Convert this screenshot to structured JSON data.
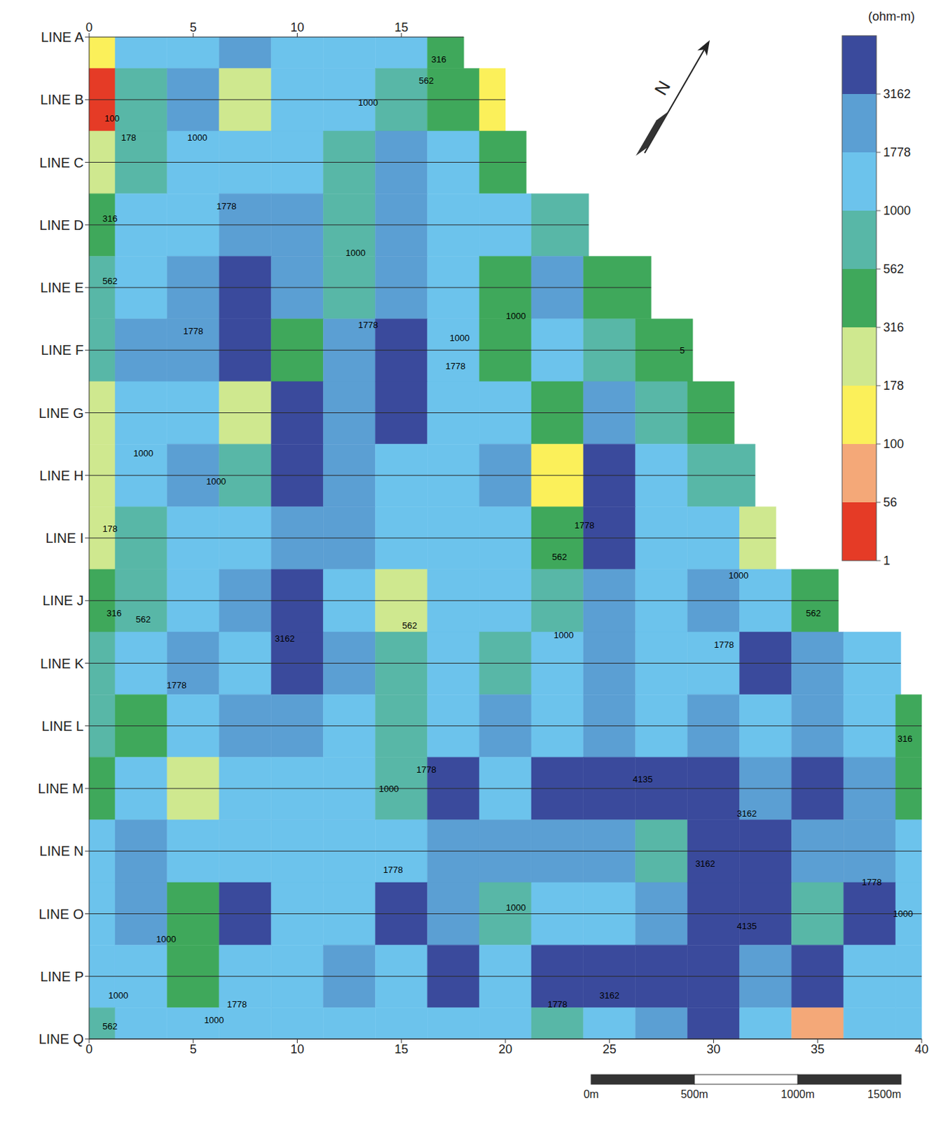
{
  "chart_data": {
    "type": "heatmap",
    "x": [
      0,
      2.5,
      5,
      7.5,
      10,
      12.5,
      15,
      17.5,
      20,
      22.5,
      25,
      27.5,
      30,
      32.5,
      35,
      37.5,
      40
    ],
    "categories": [
      "LINE A",
      "LINE B",
      "LINE C",
      "LINE D",
      "LINE E",
      "LINE F",
      "LINE G",
      "LINE H",
      "LINE I",
      "LINE J",
      "LINE K",
      "LINE L",
      "LINE M",
      "LINE N",
      "LINE O",
      "LINE P",
      "LINE Q"
    ],
    "line_end": [
      18,
      20,
      21,
      24,
      27,
      29,
      31,
      32,
      33,
      36,
      39,
      40,
      40,
      40,
      40,
      40,
      40
    ],
    "values": [
      [
        150,
        1400,
        1400,
        2400,
        1400,
        1400,
        1400,
        450,
        null,
        null,
        null,
        null,
        null,
        null,
        null,
        null,
        null
      ],
      [
        40,
        800,
        2400,
        250,
        1400,
        1400,
        800,
        450,
        140,
        null,
        null,
        null,
        null,
        null,
        null,
        null,
        null
      ],
      [
        250,
        800,
        1400,
        1400,
        1400,
        800,
        2400,
        1400,
        450,
        null,
        null,
        null,
        null,
        null,
        null,
        null,
        null
      ],
      [
        450,
        1400,
        1400,
        2400,
        2400,
        800,
        2400,
        1400,
        1400,
        800,
        null,
        null,
        null,
        null,
        null,
        null,
        null
      ],
      [
        800,
        1400,
        2400,
        3800,
        2400,
        800,
        2400,
        1400,
        450,
        2400,
        450,
        null,
        null,
        null,
        null,
        null,
        null
      ],
      [
        800,
        2400,
        2400,
        3800,
        450,
        2400,
        3800,
        1400,
        450,
        1400,
        800,
        450,
        null,
        null,
        null,
        null,
        null
      ],
      [
        250,
        1400,
        1400,
        250,
        3800,
        2400,
        3800,
        1400,
        1400,
        450,
        2400,
        800,
        450,
        null,
        null,
        null,
        null
      ],
      [
        250,
        1400,
        2400,
        800,
        3800,
        2400,
        1400,
        1400,
        2400,
        140,
        3800,
        1400,
        800,
        null,
        null,
        null,
        null
      ],
      [
        250,
        800,
        1400,
        1400,
        2400,
        2400,
        1400,
        1400,
        1400,
        450,
        3800,
        1400,
        1400,
        250,
        null,
        null,
        null
      ],
      [
        450,
        800,
        1400,
        2400,
        3800,
        1400,
        250,
        1400,
        1400,
        800,
        2400,
        1400,
        2400,
        1400,
        450,
        null,
        null
      ],
      [
        800,
        1400,
        2400,
        1400,
        3800,
        2400,
        800,
        1400,
        800,
        1400,
        2400,
        1400,
        1400,
        3800,
        2400,
        1400,
        null
      ],
      [
        800,
        450,
        1400,
        2400,
        2400,
        1400,
        800,
        1400,
        2400,
        1400,
        2400,
        1400,
        2400,
        1400,
        2400,
        1400,
        450
      ],
      [
        450,
        1400,
        250,
        1400,
        1400,
        1400,
        800,
        3800,
        1400,
        3800,
        3800,
        3800,
        3800,
        2400,
        3800,
        2400,
        450
      ],
      [
        1400,
        2400,
        1400,
        1400,
        1400,
        1400,
        1400,
        2400,
        2400,
        2400,
        2400,
        800,
        3800,
        3800,
        2400,
        2400,
        1400
      ],
      [
        1400,
        2400,
        450,
        3800,
        1400,
        1400,
        3800,
        2400,
        800,
        1400,
        1400,
        2400,
        3800,
        3800,
        800,
        3800,
        1400
      ],
      [
        1400,
        1400,
        450,
        1400,
        1400,
        2400,
        1400,
        3800,
        1400,
        3800,
        3800,
        3800,
        3800,
        2400,
        3800,
        1400,
        1400
      ],
      [
        800,
        1400,
        1400,
        1400,
        1400,
        1400,
        1400,
        1400,
        1400,
        800,
        1400,
        2400,
        3800,
        1400,
        80,
        1400,
        1400
      ]
    ],
    "xlim": [
      0,
      40
    ],
    "xticks": [
      0,
      5,
      10,
      15,
      20,
      25,
      30,
      35,
      40
    ],
    "top_xticks": [
      0,
      5,
      10,
      15
    ],
    "colorbar": {
      "title": "(ohm-m)",
      "range": [
        1,
        5623
      ],
      "ticks": [
        1,
        56,
        100,
        178,
        316,
        562,
        1000,
        1778,
        3162
      ],
      "colors": [
        "#e53b26",
        "#f4a878",
        "#fbf05a",
        "#cfe88f",
        "#3fa85b",
        "#58b7a7",
        "#6cc3ec",
        "#5b9fd3",
        "#3a4a9c"
      ]
    },
    "contour_labels": [
      {
        "x": 16.8,
        "line": 0.35,
        "label": "316"
      },
      {
        "x": 16.2,
        "line": 0.7,
        "label": "562"
      },
      {
        "x": 1.1,
        "line": 1.3,
        "label": "100"
      },
      {
        "x": 1.9,
        "line": 1.6,
        "label": "178"
      },
      {
        "x": 13.4,
        "line": 1.05,
        "label": "1000"
      },
      {
        "x": 5.2,
        "line": 1.6,
        "label": "1000"
      },
      {
        "x": 1.0,
        "line": 2.9,
        "label": "316"
      },
      {
        "x": 6.6,
        "line": 2.7,
        "label": "1778"
      },
      {
        "x": 12.8,
        "line": 3.45,
        "label": "1000"
      },
      {
        "x": 1.0,
        "line": 3.9,
        "label": "562"
      },
      {
        "x": 5.0,
        "line": 4.7,
        "label": "1778"
      },
      {
        "x": 13.4,
        "line": 4.6,
        "label": "1778"
      },
      {
        "x": 17.8,
        "line": 4.8,
        "label": "1000"
      },
      {
        "x": 20.5,
        "line": 4.45,
        "label": "1000"
      },
      {
        "x": 17.6,
        "line": 5.25,
        "label": "1778"
      },
      {
        "x": 28.5,
        "line": 5.0,
        "label": "5"
      },
      {
        "x": 2.6,
        "line": 6.65,
        "label": "1000"
      },
      {
        "x": 6.1,
        "line": 7.1,
        "label": "1000"
      },
      {
        "x": 1.0,
        "line": 7.85,
        "label": "178"
      },
      {
        "x": 23.8,
        "line": 7.8,
        "label": "1778"
      },
      {
        "x": 22.6,
        "line": 8.3,
        "label": "562"
      },
      {
        "x": 31.2,
        "line": 8.6,
        "label": "1000"
      },
      {
        "x": 1.2,
        "line": 9.2,
        "label": "316"
      },
      {
        "x": 2.6,
        "line": 9.3,
        "label": "562"
      },
      {
        "x": 9.4,
        "line": 9.6,
        "label": "3162"
      },
      {
        "x": 15.4,
        "line": 9.4,
        "label": "562"
      },
      {
        "x": 22.8,
        "line": 9.55,
        "label": "1000"
      },
      {
        "x": 30.5,
        "line": 9.7,
        "label": "1778"
      },
      {
        "x": 34.8,
        "line": 9.2,
        "label": "562"
      },
      {
        "x": 4.2,
        "line": 10.35,
        "label": "1778"
      },
      {
        "x": 39.2,
        "line": 11.2,
        "label": "316"
      },
      {
        "x": 14.4,
        "line": 12.0,
        "label": "1000"
      },
      {
        "x": 16.2,
        "line": 11.7,
        "label": "1778"
      },
      {
        "x": 26.6,
        "line": 11.85,
        "label": "4135"
      },
      {
        "x": 31.6,
        "line": 12.4,
        "label": "3162"
      },
      {
        "x": 29.6,
        "line": 13.2,
        "label": "3162"
      },
      {
        "x": 14.6,
        "line": 13.3,
        "label": "1778"
      },
      {
        "x": 20.5,
        "line": 13.9,
        "label": "1000"
      },
      {
        "x": 37.6,
        "line": 13.5,
        "label": "1778"
      },
      {
        "x": 39.1,
        "line": 14.0,
        "label": "1000"
      },
      {
        "x": 3.7,
        "line": 14.4,
        "label": "1000"
      },
      {
        "x": 1.4,
        "line": 15.3,
        "label": "1000"
      },
      {
        "x": 7.1,
        "line": 15.45,
        "label": "1778"
      },
      {
        "x": 6.0,
        "line": 15.7,
        "label": "1000"
      },
      {
        "x": 1.0,
        "line": 15.8,
        "label": "562"
      },
      {
        "x": 25.0,
        "line": 15.3,
        "label": "3162"
      },
      {
        "x": 22.5,
        "line": 15.45,
        "label": "1778"
      },
      {
        "x": 31.6,
        "line": 14.2,
        "label": "4135"
      }
    ],
    "north_arrow": "N",
    "scale_bar": {
      "ticks": [
        0,
        500,
        1000,
        1500
      ],
      "labels": [
        "0m",
        "500m",
        "1000m",
        "1500m"
      ]
    }
  }
}
